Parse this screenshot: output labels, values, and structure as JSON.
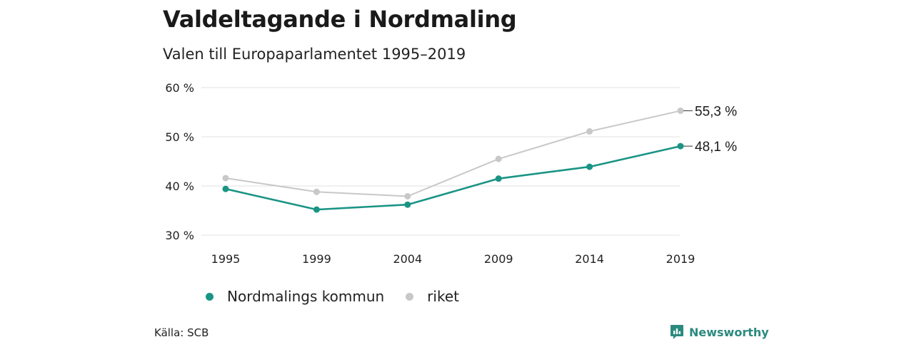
{
  "header": {
    "title": "Valdeltagande i Nordmaling",
    "subtitle": "Valen till Europaparlamentet 1995–2019"
  },
  "chart_data": {
    "type": "line",
    "title": "Valdeltagande i Nordmaling",
    "subtitle": "Valen till Europaparlamentet 1995–2019",
    "xlabel": "",
    "ylabel": "",
    "categories": [
      "1995",
      "1999",
      "2004",
      "2009",
      "2014",
      "2019"
    ],
    "y_ticks": [
      30,
      40,
      50,
      60
    ],
    "y_tick_labels": [
      "30 %",
      "40 %",
      "50 %",
      "60 %"
    ],
    "ylim": [
      30,
      60
    ],
    "grid": true,
    "legend_position": "bottom-left",
    "series": [
      {
        "name": "Nordmalings kommun",
        "values": [
          39.4,
          35.2,
          36.2,
          41.5,
          43.9,
          48.1
        ],
        "color": "#1a9485",
        "end_label": "48,1 %"
      },
      {
        "name": "riket",
        "values": [
          41.6,
          38.8,
          37.9,
          45.5,
          51.1,
          55.3
        ],
        "color": "#c8c8c8",
        "end_label": "55,3 %"
      }
    ]
  },
  "footer": {
    "source": "Källa: SCB",
    "brand": "Newsworthy",
    "brand_color": "#2b8a7e",
    "brand_icon": "bar-chart-bubble-icon"
  }
}
